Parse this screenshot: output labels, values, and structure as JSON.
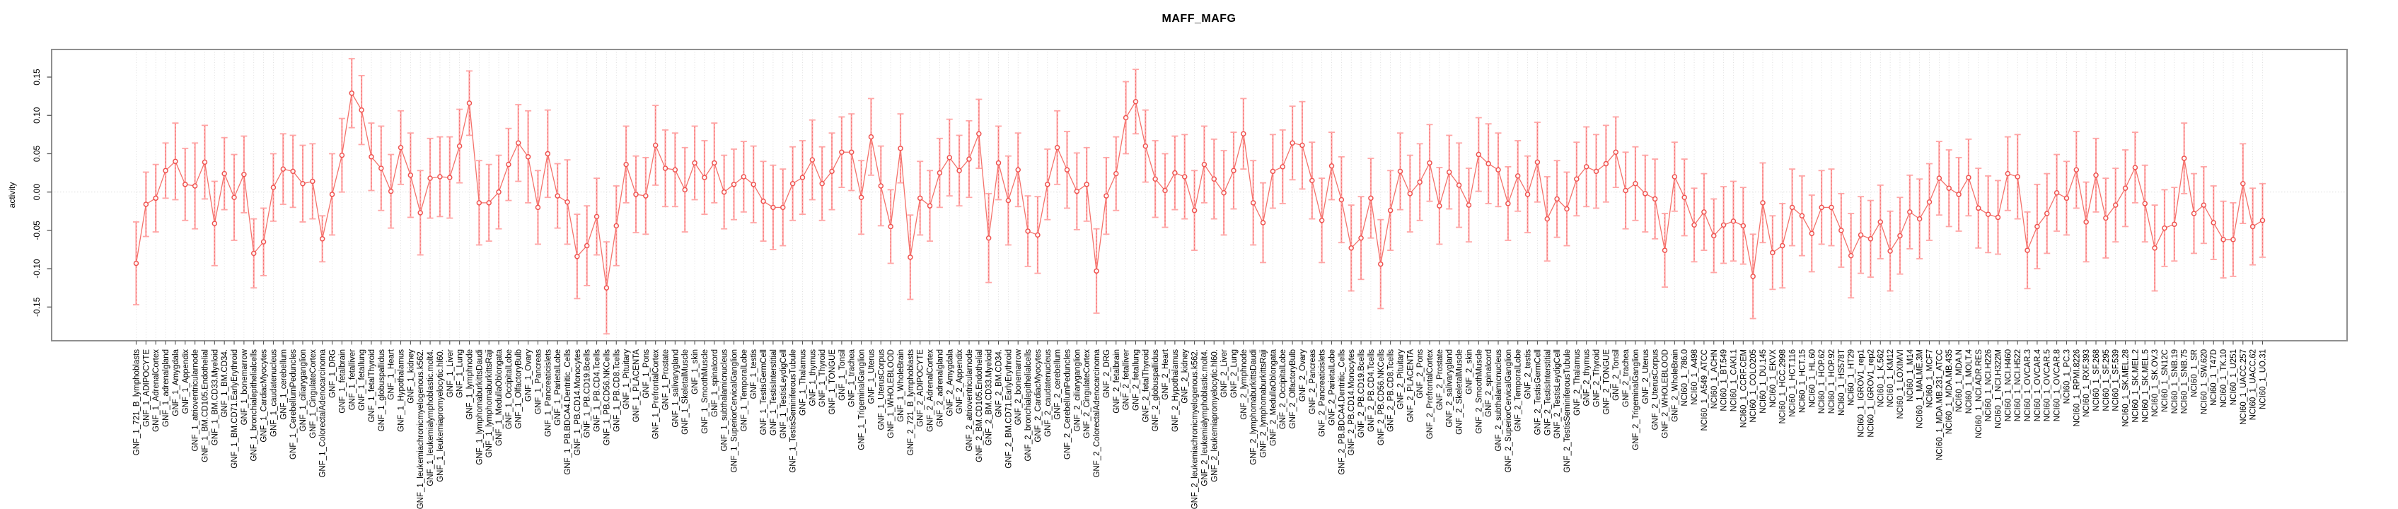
{
  "chart_data": {
    "type": "line",
    "title": "MAFF_MAFG",
    "ylabel": "activity",
    "xlabel": "",
    "ylim": [
      -0.194,
      0.186
    ],
    "yticks": [
      0.15,
      0.1,
      0.05,
      0.0,
      -0.05,
      -0.1,
      -0.15
    ],
    "ytick_labels": [
      "0.15",
      "0.10",
      "0.05",
      "0.00",
      "-0.05",
      "-0.10",
      "-0.15"
    ],
    "grid": "vertical dotted gridline at every category; dotted horizontal line at y=0",
    "legend": "none",
    "marker": "open-circle with error bars, points connected by line",
    "colors": {
      "point": "#ef5350",
      "line": "#f4726b",
      "error_bar": "#ffa6a6",
      "error_dash": "#f26d6d",
      "grid": "#d8d8d8",
      "zero_line": "#dcdcdc",
      "box": "#8f8f8f",
      "tick": "#555555",
      "label": "#000000",
      "title": "#000000"
    },
    "categories": [
      "GNF_1_721_B_lymphoblasts",
      "GNF_1_ADIPOCYTE",
      "GNF_1_AdrenalCortex",
      "GNF_1_adrenalgland",
      "GNF_1_Amygdala",
      "GNF_1_Appendix",
      "GNF_1_atrioventricularnode",
      "GNF_1_BM.CD105.Endothelial",
      "GNF_1_BM.CD33.Myeloid",
      "GNF_1_BM.CD34.",
      "GNF_1_BM.CD71.EarlyErythroid",
      "GNF_1_bonemarrow",
      "GNF_1_bronchialepithelialcells",
      "GNF_1_CardiacMyocytes",
      "GNF_1_caudatenucleus",
      "GNF_1_cerebellum",
      "GNF_1_CerebellumPeduncles",
      "GNF_1_ciliaryganglion",
      "GNF_1_CingulateCortex",
      "GNF_1_ColorectalAdenocarcinoma",
      "GNF_1_DRG",
      "GNF_1_fetalbrain",
      "GNF_1_fetalliver",
      "GNF_1_fetallung",
      "GNF_1_fetalThyroid",
      "GNF_1_globuspallidus",
      "GNF_1_Heart",
      "GNF_1_Hypothalamus",
      "GNF_1_kidney",
      "GNF_1_leukemiachronicmyelogenous.k562.",
      "GNF_1_leukemialymphoblastic.molt4.",
      "GNF_1_leukemiapromyelocytic.hl60.",
      "GNF_1_Liver",
      "GNF_1_Lung",
      "GNF_1_lymphnode",
      "GNF_1_lymphomaburkittsDaudi",
      "GNF_1_lymphomaburkittsRaji",
      "GNF_1_MedullaOblongata",
      "GNF_1_OccipitalLobe",
      "GNF_1_OlfactoryBulb",
      "GNF_1_Ovary",
      "GNF_1_Pancreas",
      "GNF_1_Pancreaticislets",
      "GNF_1_ParietalLobe",
      "GNF_1_PB.BDCA4.Dentritic_Cells",
      "GNF_1_PB.CD14.Monocytes",
      "GNF_1_PB.CD19.Bcells",
      "GNF_1_PB.CD4.Tcells",
      "GNF_1_PB.CD56.NKCells",
      "GNF_1_PB.CD8.Tcells",
      "GNF_1_Pituitary",
      "GNF_1_PLACENTA",
      "GNF_1_Pons",
      "GNF_1_PrefrontalCortex",
      "GNF_1_Prostate",
      "GNF_1_salivarygland",
      "GNF_1_SkeletalMuscle",
      "GNF_1_skin",
      "GNF_1_SmoothMuscle",
      "GNF_1_spinalcord",
      "GNF_1_subthalamicnucleus",
      "GNF_1_SuperiorCervicalGanglion",
      "GNF_1_TemporalLobe",
      "GNF_1_testis",
      "GNF_1_TestisGermCell",
      "GNF_1_TestisInterstitial",
      "GNF_1_TestisLeydigCell",
      "GNF_1_TestisSeminiferousTubule",
      "GNF_1_Thalamus",
      "GNF_1_thymus",
      "GNF_1_Thyroid",
      "GNF_1_TONGUE",
      "GNF_1_Tonsil",
      "GNF_1_trachea",
      "GNF_1_TrigeminalGanglion",
      "GNF_1_Uterus",
      "GNF_1_UterusCorpus",
      "GNF_1_WHOLEBLOOD",
      "GNF_1_WholeBrain",
      "GNF_2_721_B_lymphoblasts",
      "GNF_2_ADIPOCYTE",
      "GNF_2_AdrenalCortex",
      "GNF_2_adrenalgland",
      "GNF_2_Amygdala",
      "GNF_2_Appendix",
      "GNF_2_atrioventricularnode",
      "GNF_2_BM.CD105.Endothelial",
      "GNF_2_BM.CD33.Myeloid",
      "GNF_2_BM.CD34.",
      "GNF_2_BM.CD71.EarlyErythroid",
      "GNF_2_bonemarrow",
      "GNF_2_bronchialepithelialcells",
      "GNF_2_CardiacMyocytes",
      "GNF_2_caudatenucleus",
      "GNF_2_cerebellum",
      "GNF_2_CerebellumPeduncles",
      "GNF_2_ciliaryganglion",
      "GNF_2_CingulateCortex",
      "GNF_2_ColorectalAdenocarcinoma",
      "GNF_2_DRG",
      "GNF_2_fetalbrain",
      "GNF_2_fetalliver",
      "GNF_2_fetallung",
      "GNF_2_fetalThyroid",
      "GNF_2_globuspallidus",
      "GNF_2_Heart",
      "GNF_2_Hypothalamus",
      "GNF_2_kidney",
      "GNF_2_leukemiachronicmyelogenous.k562.",
      "GNF_2_leukemialymphoblastic.molt4.",
      "GNF_2_leukemiapromyelocytic.hl60.",
      "GNF_2_Liver",
      "GNF_2_Lung",
      "GNF_2_lymphnode",
      "GNF_2_lymphomaburkittsDaudi",
      "GNF_2_lymphomaburkittsRaji",
      "GNF_2_MedullaOblongata",
      "GNF_2_OccipitalLobe",
      "GNF_2_OlfactoryBulb",
      "GNF_2_Ovary",
      "GNF_2_Pancreas",
      "GNF_2_Pancreaticislets",
      "GNF_2_ParietalLobe",
      "GNF_2_PB.BDCA4.Dentritic_Cells",
      "GNF_2_PB.CD14.Monocytes",
      "GNF_2_PB.CD19.Bcells",
      "GNF_2_PB.CD4.Tcells",
      "GNF_2_PB.CD56.NKCells",
      "GNF_2_PB.CD8.Tcells",
      "GNF_2_Pituitary",
      "GNF_2_PLACENTA",
      "GNF_2_Pons",
      "GNF_2_PrefrontalCortex",
      "GNF_2_Prostate",
      "GNF_2_salivarygland",
      "GNF_2_SkeletalMuscle",
      "GNF_2_skin",
      "GNF_2_SmoothMuscle",
      "GNF_2_spinalcord",
      "GNF_2_subthalamicnucleus",
      "GNF_2_SuperiorCervicalGanglion",
      "GNF_2_TemporalLobe",
      "GNF_2_testis",
      "GNF_2_TestisGermCell",
      "GNF_2_TestisInterstitial",
      "GNF_2_TestisLeydigCell",
      "GNF_2_TestisSeminiferousTubule",
      "GNF_2_Thalamus",
      "GNF_2_thymus",
      "GNF_2_Thyroid",
      "GNF_2_TONGUE",
      "GNF_2_Tonsil",
      "GNF_2_trachea",
      "GNF_2_TrigeminalGanglion",
      "GNF_2_Uterus",
      "GNF_2_UterusCorpus",
      "GNF_2_WHOLEBLOOD",
      "GNF_2_WholeBrain",
      "NCI60_1_786.0",
      "NCI60_1_A498",
      "NCI60_1_A549_ATCC",
      "NCI60_1_ACHN",
      "NCI60_1_BT.549",
      "NCI60_1_CAKI.1",
      "NCI60_1_CCRF.CEM",
      "NCI60_1_COLO205",
      "NCI60_1_DU.145",
      "NCI60_1_EKVX",
      "NCI60_1_HCC.2998",
      "NCI60_1_HCT.116",
      "NCI60_1_HCT.15",
      "NCI60_1_HL.60",
      "NCI60_1_HOP.62",
      "NCI60_1_HOP.92",
      "NCI60_1_HS578T",
      "NCI60_1_HT29",
      "NCI60_1_IGROV1_rep1",
      "NCI60_1_IGROV1_rep2",
      "NCI60_1_K.562",
      "NCI60_1_KM12",
      "NCI60_1_LOXIMVI",
      "NCI60_1_M14",
      "NCI60_1_MALME.3M",
      "NCI60_1_MCF7",
      "NCI60_1_MDA.MB.231_ATCC",
      "NCI60_1_MDA.MB.435",
      "NCI60_1_MDA.N",
      "NCI60_1_MOLT.4",
      "NCI60_1_NCI.ADR.RES",
      "NCI60_1_NCI.H226",
      "NCI60_1_NCI.H322M",
      "NCI60_1_NCI.H460",
      "NCI60_1_NCI.H522",
      "NCI60_1_OVCAR.3",
      "NCI60_1_OVCAR.4",
      "NCI60_1_OVCAR.5",
      "NCI60_1_OVCAR.8",
      "NCI60_1_PC.3",
      "NCI60_1_RPMI.8226",
      "NCI60_1_RXF.393",
      "NCI60_1_SF.268",
      "NCI60_1_SF.295",
      "NCI60_1_SF.539",
      "NCI60_1_SK.MEL.28",
      "NCI60_1_SK.MEL.2",
      "NCI60_1_SK.MEL.5",
      "NCI60_1_SK.OV.3",
      "NCI60_1_SN12C",
      "NCI60_1_SNB.19",
      "NCI60_1_SNB.75",
      "NCI60_1_SR",
      "NCI60_1_SW.620",
      "NCI60_1_T47D",
      "NCI60_1_TK.10",
      "NCI60_1_U251",
      "NCI60_1_UACC.257",
      "NCI60_1_UACC.62",
      "NCI60_1_UO.31"
    ],
    "values": [
      -0.093,
      -0.016,
      -0.008,
      0.028,
      0.04,
      0.01,
      0.008,
      0.039,
      -0.041,
      0.024,
      -0.007,
      0.023,
      -0.08,
      -0.065,
      0.006,
      0.03,
      0.027,
      0.011,
      0.014,
      -0.061,
      -0.003,
      0.048,
      0.129,
      0.107,
      0.046,
      0.031,
      0.001,
      0.058,
      0.022,
      -0.027,
      0.018,
      0.02,
      0.019,
      0.06,
      0.116,
      -0.014,
      -0.014,
      0.0,
      0.036,
      0.064,
      0.046,
      -0.02,
      0.05,
      -0.005,
      -0.013,
      -0.084,
      -0.07,
      -0.032,
      -0.125,
      -0.044,
      0.036,
      -0.003,
      -0.005,
      0.061,
      0.031,
      0.029,
      0.003,
      0.038,
      0.019,
      0.038,
      0.0,
      0.01,
      0.02,
      0.01,
      -0.012,
      -0.02,
      -0.02,
      0.011,
      0.019,
      0.042,
      0.011,
      0.027,
      0.052,
      0.052,
      -0.007,
      0.072,
      0.008,
      -0.045,
      0.057,
      -0.085,
      -0.008,
      -0.018,
      0.025,
      0.045,
      0.028,
      0.043,
      0.076,
      -0.06,
      0.038,
      -0.011,
      0.029,
      -0.051,
      -0.056,
      0.01,
      0.058,
      0.029,
      0.001,
      0.01,
      -0.103,
      -0.005,
      0.024,
      0.097,
      0.118,
      0.06,
      0.017,
      0.002,
      0.025,
      0.02,
      -0.024,
      0.036,
      0.017,
      -0.001,
      0.028,
      0.076,
      -0.014,
      -0.04,
      0.027,
      0.033,
      0.064,
      0.061,
      0.015,
      -0.037,
      0.034,
      -0.01,
      -0.073,
      -0.06,
      -0.008,
      -0.094,
      -0.024,
      0.027,
      -0.002,
      0.013,
      0.038,
      -0.018,
      0.026,
      0.009,
      -0.017,
      0.049,
      0.037,
      0.029,
      -0.015,
      0.021,
      -0.003,
      0.039,
      -0.035,
      -0.009,
      -0.022,
      0.017,
      0.033,
      0.027,
      0.037,
      0.052,
      0.002,
      0.011,
      -0.002,
      -0.009,
      -0.076,
      0.02,
      -0.007,
      -0.043,
      -0.026,
      -0.057,
      -0.043,
      -0.038,
      -0.044,
      -0.11,
      -0.014,
      -0.079,
      -0.07,
      -0.02,
      -0.031,
      -0.054,
      -0.02,
      -0.02,
      -0.05,
      -0.083,
      -0.056,
      -0.061,
      -0.039,
      -0.077,
      -0.057,
      -0.026,
      -0.035,
      -0.013,
      0.018,
      0.005,
      -0.003,
      0.019,
      -0.021,
      -0.029,
      -0.033,
      0.024,
      0.02,
      -0.076,
      -0.045,
      -0.028,
      -0.001,
      -0.008,
      0.029,
      -0.039,
      0.022,
      -0.034,
      -0.017,
      0.005,
      0.032,
      -0.015,
      -0.073,
      -0.047,
      -0.042,
      0.044,
      -0.028,
      -0.017,
      -0.04,
      -0.062,
      -0.062,
      0.011,
      -0.045,
      -0.037
    ],
    "errors": [
      0.054,
      0.042,
      0.044,
      0.036,
      0.05,
      0.047,
      0.056,
      0.048,
      0.055,
      0.047,
      0.056,
      0.05,
      0.045,
      0.044,
      0.044,
      0.046,
      0.047,
      0.05,
      0.049,
      0.03,
      0.053,
      0.048,
      0.045,
      0.045,
      0.044,
      0.055,
      0.048,
      0.048,
      0.055,
      0.055,
      0.052,
      0.052,
      0.053,
      0.048,
      0.042,
      0.055,
      0.05,
      0.048,
      0.047,
      0.05,
      0.06,
      0.048,
      0.057,
      0.042,
      0.055,
      0.055,
      0.052,
      0.05,
      0.06,
      0.052,
      0.05,
      0.05,
      0.05,
      0.052,
      0.05,
      0.048,
      0.055,
      0.048,
      0.048,
      0.052,
      0.048,
      0.046,
      0.046,
      0.05,
      0.052,
      0.055,
      0.05,
      0.048,
      0.048,
      0.052,
      0.048,
      0.05,
      0.046,
      0.05,
      0.048,
      0.05,
      0.052,
      0.048,
      0.045,
      0.055,
      0.048,
      0.046,
      0.045,
      0.05,
      0.046,
      0.05,
      0.045,
      0.058,
      0.048,
      0.058,
      0.048,
      0.046,
      0.05,
      0.046,
      0.048,
      0.05,
      0.05,
      0.048,
      0.055,
      0.05,
      0.048,
      0.047,
      0.042,
      0.047,
      0.05,
      0.048,
      0.048,
      0.055,
      0.052,
      0.05,
      0.052,
      0.055,
      0.05,
      0.046,
      0.055,
      0.052,
      0.048,
      0.048,
      0.048,
      0.057,
      0.05,
      0.055,
      0.044,
      0.056,
      0.056,
      0.054,
      0.052,
      0.058,
      0.052,
      0.05,
      0.05,
      0.05,
      0.05,
      0.05,
      0.048,
      0.055,
      0.048,
      0.048,
      0.052,
      0.048,
      0.048,
      0.046,
      0.05,
      0.052,
      0.055,
      0.05,
      0.048,
      0.048,
      0.052,
      0.048,
      0.05,
      0.046,
      0.05,
      0.048,
      0.05,
      0.052,
      0.048,
      0.045,
      0.05,
      0.048,
      0.05,
      0.048,
      0.05,
      0.052,
      0.05,
      0.055,
      0.052,
      0.048,
      0.055,
      0.05,
      0.052,
      0.05,
      0.048,
      0.05,
      0.048,
      0.055,
      0.05,
      0.05,
      0.048,
      0.052,
      0.05,
      0.048,
      0.052,
      0.05,
      0.048,
      0.05,
      0.048,
      0.05,
      0.052,
      0.05,
      0.048,
      0.048,
      0.055,
      0.05,
      0.055,
      0.052,
      0.05,
      0.048,
      0.05,
      0.052,
      0.048,
      0.052,
      0.048,
      0.05,
      0.046,
      0.05,
      0.056,
      0.05,
      0.048,
      0.046,
      0.052,
      0.05,
      0.048,
      0.05,
      0.048,
      0.052,
      0.05,
      0.048
    ]
  }
}
